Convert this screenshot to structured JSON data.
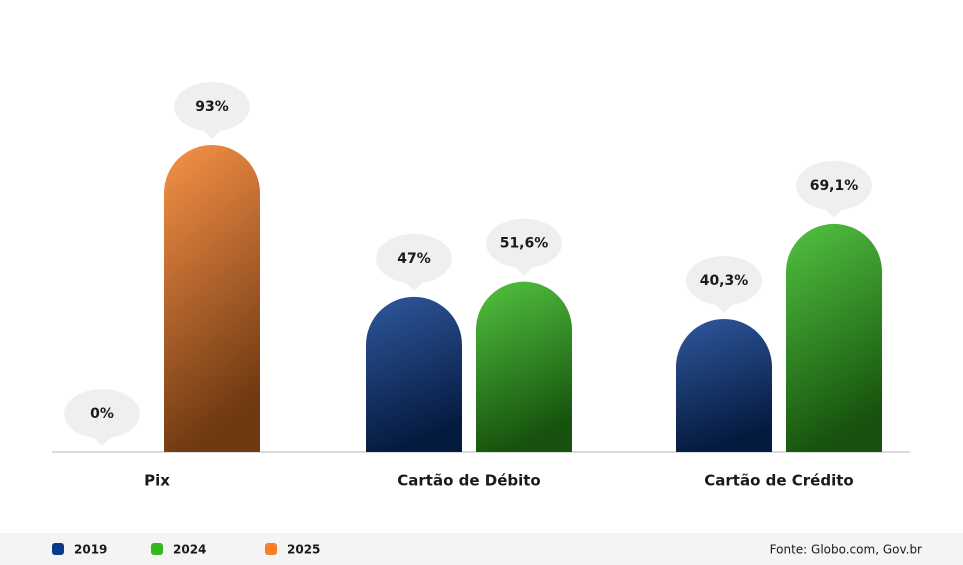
{
  "chart_data": {
    "type": "bar",
    "categories": [
      "Pix",
      "Cartão de Débito",
      "Cartão de Crédito"
    ],
    "series": [
      {
        "name": "2019",
        "color": "#0a3a8c",
        "values": [
          0,
          47,
          40.3
        ],
        "value_labels": [
          "0%",
          "47%",
          "40,3%"
        ]
      },
      {
        "name": "2024",
        "color": "#33b81e",
        "values": [
          null,
          51.6,
          69.1
        ],
        "value_labels": [
          null,
          "51,6%",
          "69,1%"
        ]
      },
      {
        "name": "2025",
        "color": "#f77f28",
        "values": [
          93,
          null,
          null
        ],
        "value_labels": [
          "93%",
          null,
          null
        ]
      }
    ],
    "source": "Fonte: Globo.com, Gov.br"
  }
}
